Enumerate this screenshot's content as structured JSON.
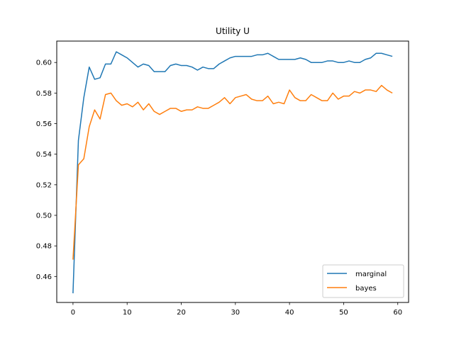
{
  "chart_data": {
    "type": "line",
    "title": "Utility U",
    "xlabel": "",
    "ylabel": "",
    "xlim": [
      -3,
      62
    ],
    "ylim": [
      0.443,
      0.614
    ],
    "xticks": [
      0,
      10,
      20,
      30,
      40,
      50,
      60
    ],
    "yticks": [
      0.46,
      0.48,
      0.5,
      0.52,
      0.54,
      0.56,
      0.58,
      0.6
    ],
    "grid": false,
    "legend_position": "lower-right",
    "x": [
      0,
      1,
      2,
      3,
      4,
      5,
      6,
      7,
      8,
      9,
      10,
      11,
      12,
      13,
      14,
      15,
      16,
      17,
      18,
      19,
      20,
      21,
      22,
      23,
      24,
      25,
      26,
      27,
      28,
      29,
      30,
      31,
      32,
      33,
      34,
      35,
      36,
      37,
      38,
      39,
      40,
      41,
      42,
      43,
      44,
      45,
      46,
      47,
      48,
      49,
      50,
      51,
      52,
      53,
      54,
      55,
      56,
      57,
      58,
      59
    ],
    "series": [
      {
        "name": "marginal",
        "color": "#1f77b4",
        "values": [
          0.449,
          0.549,
          0.577,
          0.597,
          0.589,
          0.59,
          0.599,
          0.599,
          0.607,
          0.605,
          0.603,
          0.6,
          0.597,
          0.599,
          0.598,
          0.594,
          0.594,
          0.594,
          0.598,
          0.599,
          0.598,
          0.598,
          0.597,
          0.595,
          0.597,
          0.596,
          0.596,
          0.599,
          0.601,
          0.603,
          0.604,
          0.604,
          0.604,
          0.604,
          0.605,
          0.605,
          0.606,
          0.604,
          0.602,
          0.602,
          0.602,
          0.602,
          0.603,
          0.602,
          0.6,
          0.6,
          0.6,
          0.601,
          0.601,
          0.6,
          0.6,
          0.601,
          0.6,
          0.6,
          0.602,
          0.603,
          0.606,
          0.606,
          0.605,
          0.604
        ]
      },
      {
        "name": "bayes",
        "color": "#ff7f0e",
        "values": [
          0.471,
          0.533,
          0.537,
          0.558,
          0.569,
          0.563,
          0.579,
          0.58,
          0.575,
          0.572,
          0.573,
          0.571,
          0.574,
          0.569,
          0.573,
          0.568,
          0.566,
          0.568,
          0.57,
          0.57,
          0.568,
          0.569,
          0.569,
          0.571,
          0.57,
          0.57,
          0.572,
          0.574,
          0.577,
          0.573,
          0.577,
          0.578,
          0.579,
          0.576,
          0.575,
          0.575,
          0.578,
          0.573,
          0.574,
          0.573,
          0.582,
          0.577,
          0.575,
          0.575,
          0.579,
          0.577,
          0.575,
          0.575,
          0.58,
          0.576,
          0.578,
          0.578,
          0.581,
          0.58,
          0.582,
          0.582,
          0.581,
          0.585,
          0.582,
          0.58
        ]
      }
    ]
  }
}
